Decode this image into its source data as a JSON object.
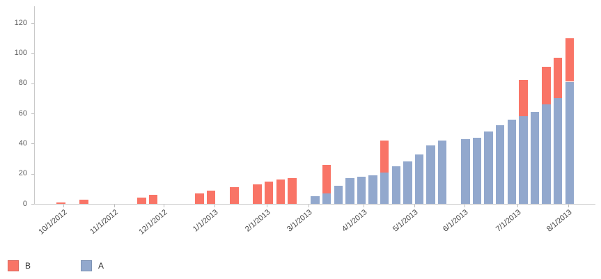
{
  "chart_data": {
    "type": "bar",
    "stacked": true,
    "title": "",
    "xlabel": "",
    "ylabel": "",
    "x_unit": "week-index (weekly bars, one slot per week)",
    "slots": 45,
    "ylim": [
      0,
      131
    ],
    "yticks": [
      0,
      20,
      40,
      60,
      80,
      100,
      120
    ],
    "grid": "off",
    "legend_position": "bottom-left",
    "x_ticks": [
      {
        "label": "10/1/2012",
        "pos": 0.2
      },
      {
        "label": "11/1/2012",
        "pos": 4.6
      },
      {
        "label": "12/1/2012",
        "pos": 8.9
      },
      {
        "label": "1/1/2013",
        "pos": 13.3
      },
      {
        "label": "2/1/2013",
        "pos": 17.8
      },
      {
        "label": "3/1/2013",
        "pos": 21.4
      },
      {
        "label": "4/1/2013",
        "pos": 26.2
      },
      {
        "label": "5/1/2013",
        "pos": 30.6
      },
      {
        "label": "6/1/2013",
        "pos": 34.9
      },
      {
        "label": "7/1/2013",
        "pos": 39.5
      },
      {
        "label": "8/1/2013",
        "pos": 43.9
      }
    ],
    "series": [
      {
        "name": "A",
        "color": "#92a8cd",
        "stack_order": "bottom",
        "values": [
          0,
          null,
          0,
          null,
          null,
          null,
          null,
          0,
          0,
          null,
          null,
          null,
          0,
          0,
          null,
          0,
          null,
          0,
          0,
          0,
          0,
          null,
          5,
          7,
          12,
          17,
          18,
          19,
          21,
          25,
          28,
          33,
          39,
          42,
          null,
          43,
          44,
          48,
          52,
          56,
          58,
          61,
          66,
          70,
          81
        ]
      },
      {
        "name": "B",
        "color": "#f97466",
        "stack_order": "top",
        "values": [
          1,
          null,
          3,
          null,
          null,
          null,
          null,
          4,
          6,
          null,
          null,
          null,
          7,
          9,
          null,
          11,
          null,
          13,
          15,
          16,
          17,
          null,
          0,
          19,
          0,
          0,
          0,
          0,
          21,
          0,
          0,
          0,
          0,
          0,
          null,
          0,
          0,
          0,
          0,
          0,
          24,
          0,
          25,
          27,
          29
        ]
      }
    ]
  },
  "legend": {
    "items": [
      {
        "label": "B",
        "color": "#f97466",
        "border": "#d9695f"
      },
      {
        "label": "A",
        "color": "#92a8cd",
        "border": "#7d93b5"
      }
    ]
  },
  "colors": {
    "series_a": "#92a8cd",
    "series_b": "#f97466",
    "axis_line": "#c9c9c9",
    "tick_mark": "#bdbdbd",
    "y_label_text": "#5e5e5e",
    "x_label_text": "#474747",
    "legend_text": "#333333",
    "background": "#ffffff"
  }
}
